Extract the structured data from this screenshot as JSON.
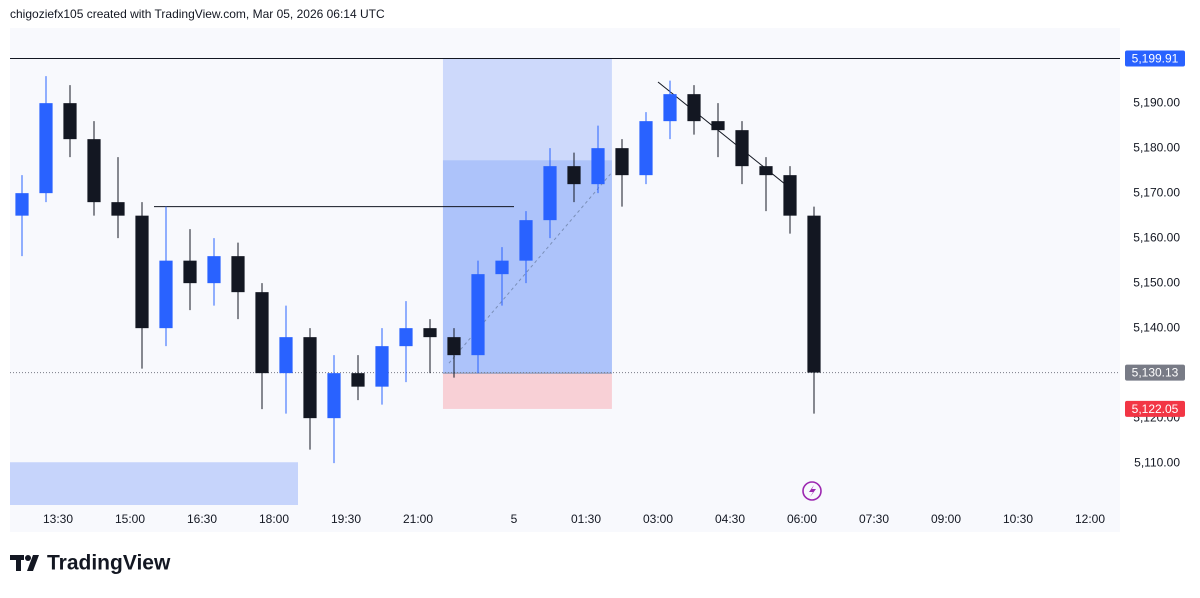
{
  "header": {
    "text": "chigoziefx105 created with TradingView.com, Mar 05, 2026 06:14 UTC"
  },
  "footer": {
    "logo": "TradingView"
  },
  "chart_data": {
    "type": "candlestick",
    "up_color": "#2962ff",
    "down_color": "#131722",
    "x": [
      12.5,
      13,
      13.5,
      14,
      14.5,
      15,
      15.5,
      16,
      16.5,
      17,
      17.5,
      18,
      18.5,
      19,
      19.5,
      20,
      20.5,
      21,
      21.5,
      22,
      22.5,
      23,
      23.5,
      24,
      24.5,
      25,
      25.5,
      26,
      26.5,
      27,
      27.5,
      28,
      28.5,
      29
    ],
    "open": [
      5165,
      5170,
      5190,
      5182,
      5168,
      5165,
      5140,
      5155,
      5150,
      5156,
      5148,
      5130,
      5138,
      5120,
      5130,
      5127,
      5136,
      5140,
      5138,
      5134,
      5152,
      5155,
      5164,
      5176,
      5172,
      5180,
      5174,
      5186,
      5192,
      5186,
      5184,
      5176,
      5174,
      5165
    ],
    "high": [
      5174,
      5196,
      5194,
      5186,
      5178,
      5168,
      5167,
      5162,
      5160,
      5159,
      5150,
      5145,
      5140,
      5134,
      5134,
      5140,
      5146,
      5142,
      5140,
      5155,
      5158,
      5166,
      5180,
      5179,
      5185,
      5182,
      5188,
      5195,
      5194,
      5190,
      5186,
      5178,
      5176,
      5167
    ],
    "low": [
      5156,
      5168,
      5178,
      5165,
      5160,
      5131,
      5136,
      5144,
      5145,
      5142,
      5122,
      5121,
      5113,
      5110,
      5124,
      5123,
      5128,
      5130,
      5129,
      5130,
      5145,
      5150,
      5160,
      5168,
      5170,
      5167,
      5172,
      5182,
      5183,
      5178,
      5172,
      5166,
      5161,
      5121
    ],
    "close": [
      5170,
      5190,
      5182,
      5168,
      5165,
      5140,
      5155,
      5150,
      5156,
      5148,
      5130,
      5138,
      5120,
      5130,
      5127,
      5136,
      5140,
      5138,
      5134,
      5152,
      5155,
      5164,
      5176,
      5172,
      5180,
      5174,
      5186,
      5192,
      5186,
      5184,
      5176,
      5174,
      5165,
      5130.13
    ],
    "xlim": [
      12.5,
      35.625
    ],
    "ylim": [
      5100.7,
      5206.7
    ],
    "xticks": [
      {
        "value": 13.5,
        "label": "13:30"
      },
      {
        "value": 15,
        "label": "15:00"
      },
      {
        "value": 16.5,
        "label": "16:30"
      },
      {
        "value": 18,
        "label": "18:00"
      },
      {
        "value": 19.5,
        "label": "19:30"
      },
      {
        "value": 21,
        "label": "21:00"
      },
      {
        "value": 23,
        "label": "5"
      },
      {
        "value": 24.5,
        "label": "01:30"
      },
      {
        "value": 26,
        "label": "03:00"
      },
      {
        "value": 27.5,
        "label": "04:30"
      },
      {
        "value": 29,
        "label": "06:00"
      },
      {
        "value": 30.5,
        "label": "07:30"
      },
      {
        "value": 32,
        "label": "09:00"
      },
      {
        "value": 33.5,
        "label": "10:30"
      },
      {
        "value": 35,
        "label": "12:00"
      }
    ],
    "yticks": [
      {
        "value": 5110,
        "label": "5,110.00"
      },
      {
        "value": 5120,
        "label": "5,120.00"
      },
      {
        "value": 5130,
        "label": "5,130.00"
      },
      {
        "value": 5140,
        "label": "5,140.00"
      },
      {
        "value": 5150,
        "label": "5,150.00"
      },
      {
        "value": 5160,
        "label": "5,160.00"
      },
      {
        "value": 5170,
        "label": "5,170.00"
      },
      {
        "value": 5180,
        "label": "5,180.00"
      },
      {
        "value": 5190,
        "label": "5,190.00"
      }
    ],
    "resistance": {
      "value": 5199.91,
      "label": "5,199.91",
      "color": "#2962ff"
    },
    "last_price": {
      "value": 5130.13,
      "label": "5,130.13",
      "color": "#787b86"
    },
    "stop_price": {
      "value": 5122.05,
      "label": "5,122.05",
      "color": "#f23645"
    },
    "level_line": {
      "x": [
        15.5,
        23
      ],
      "value": 5167
    },
    "trend_line": {
      "x": [
        26,
        28.8
      ],
      "values": [
        5194.7,
        5170.7
      ]
    },
    "position": {
      "x": [
        21.52,
        25.04
      ],
      "target": 5199.91,
      "progress": 5177.3,
      "entry": 5130,
      "stop": 5122.05
    },
    "zone": {
      "x": [
        12.5,
        18.5
      ],
      "values": [
        5100.7,
        5110.2
      ]
    }
  }
}
